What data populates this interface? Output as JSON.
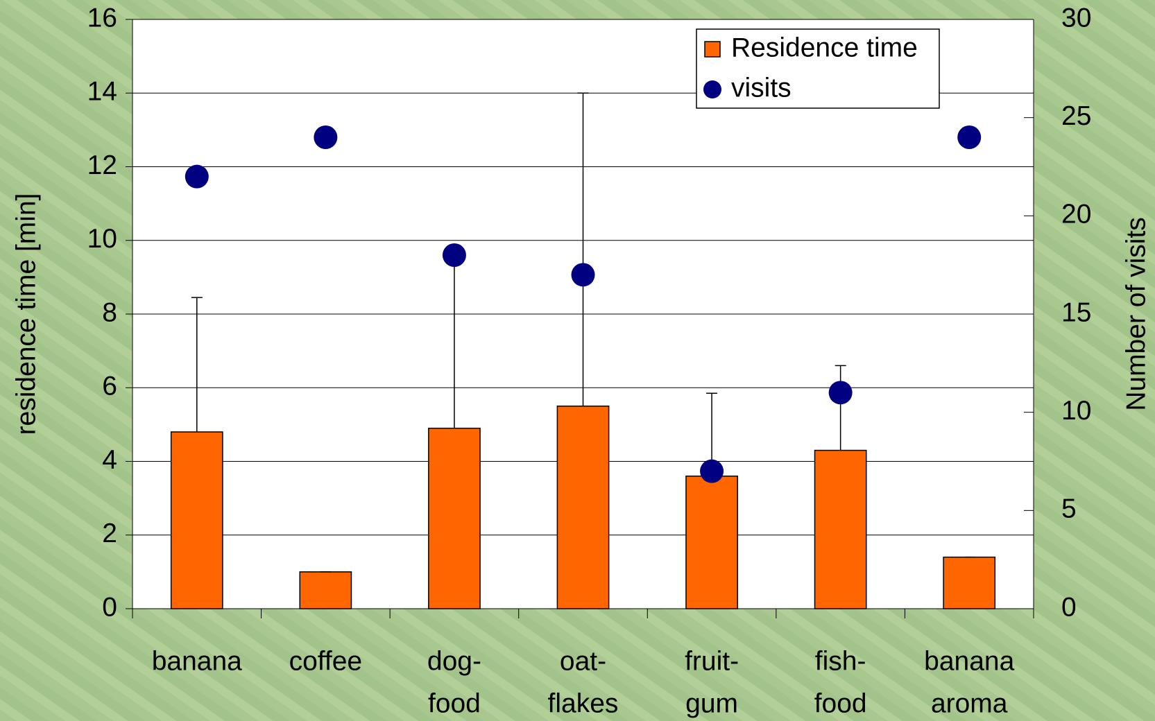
{
  "chart_data": {
    "type": "bar",
    "categories": [
      [
        "banana"
      ],
      [
        "coffee"
      ],
      [
        "dog-",
        "food"
      ],
      [
        "oat-",
        "flakes"
      ],
      [
        "fruit-",
        "gum"
      ],
      [
        "fish-",
        "food"
      ],
      [
        "banana",
        "aroma"
      ]
    ],
    "series": [
      {
        "name": "Residence time",
        "type": "bar",
        "color": "#ff6600",
        "values": [
          4.8,
          1.0,
          4.9,
          5.5,
          3.6,
          4.3,
          1.4
        ],
        "errors": [
          3.65,
          0,
          4.7,
          8.5,
          2.25,
          2.3,
          0
        ]
      },
      {
        "name": "visits",
        "type": "scatter",
        "axis": "y2",
        "color": "#000080",
        "values": [
          22,
          24,
          18,
          17,
          7,
          11,
          24
        ]
      }
    ],
    "ylabel": "residence time [min]",
    "y2label": "Number of visits",
    "ylim": [
      0,
      16
    ],
    "yticks": [
      0,
      2,
      4,
      6,
      8,
      10,
      12,
      14,
      16
    ],
    "y2lim": [
      0,
      30
    ],
    "y2ticks": [
      0,
      5,
      10,
      15,
      20,
      25,
      30
    ],
    "grid": true,
    "legend": "upper right"
  }
}
